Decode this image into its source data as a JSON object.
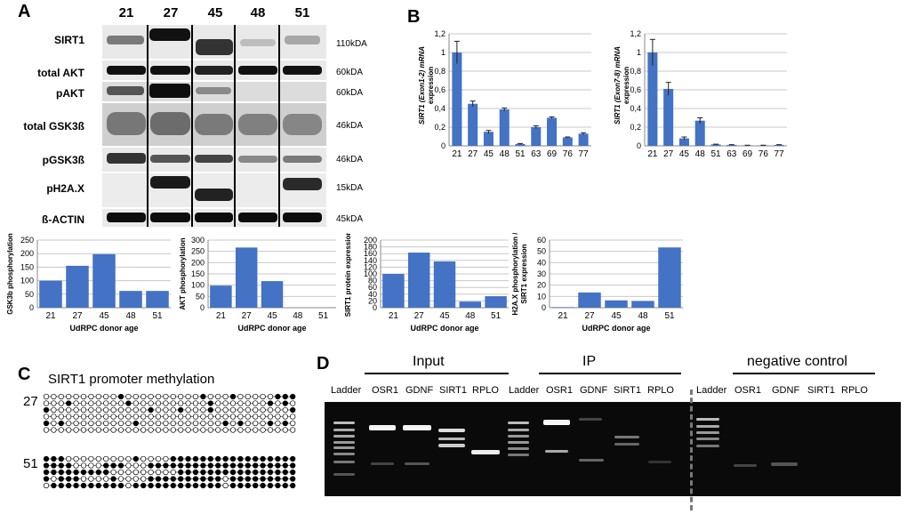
{
  "panel_labels": {
    "a": "A",
    "b": "B",
    "c": "C",
    "d": "D"
  },
  "western": {
    "lanes": [
      "21",
      "27",
      "45",
      "48",
      "51"
    ],
    "proteins": [
      {
        "name": "SIRT1",
        "kda": "110kDA"
      },
      {
        "name": "total AKT",
        "kda": "60kDA"
      },
      {
        "name": "pAKT",
        "kda": "60kDA"
      },
      {
        "name": "total GSK3ß",
        "kda": "46kDA"
      },
      {
        "name": "pGSK3ß",
        "kda": "46kDA"
      },
      {
        "name": "pH2A.X",
        "kda": "15kDA"
      },
      {
        "name": "ß-ACTIN",
        "kda": "45kDA"
      }
    ]
  },
  "chart_data": [
    {
      "type": "bar",
      "ylabel": "SIRT1 (Exon1-2) mRNA expression",
      "categories": [
        "21",
        "27",
        "45",
        "48",
        "51",
        "63",
        "69",
        "76",
        "77"
      ],
      "values": [
        1.0,
        0.45,
        0.15,
        0.39,
        0.02,
        0.2,
        0.3,
        0.09,
        0.13
      ],
      "errors": [
        0.12,
        0.03,
        0.015,
        0.015,
        0.005,
        0.015,
        0.01,
        0.005,
        0.01
      ],
      "ylim": [
        0,
        1.2
      ],
      "yticks": [
        "0",
        "0,2",
        "0,4",
        "0,6",
        "0,8",
        "1",
        "1,2"
      ],
      "ytick_values": [
        0,
        0.2,
        0.4,
        0.6,
        0.8,
        1,
        1.2
      ],
      "xlabel": ""
    },
    {
      "type": "bar",
      "ylabel": "SIRT1 (Exon7-8) mRNA expression",
      "categories": [
        "21",
        "27",
        "45",
        "48",
        "51",
        "63",
        "69",
        "76",
        "77"
      ],
      "values": [
        1.0,
        0.61,
        0.08,
        0.27,
        0.015,
        0.01,
        0.005,
        0.005,
        0.01
      ],
      "errors": [
        0.14,
        0.07,
        0.015,
        0.03,
        0.003,
        0.003,
        0.002,
        0.002,
        0.003
      ],
      "ylim": [
        0,
        1.2
      ],
      "yticks": [
        "0",
        "0,2",
        "0,4",
        "0,6",
        "0,8",
        "1",
        "1,2"
      ],
      "ytick_values": [
        0,
        0.2,
        0.4,
        0.6,
        0.8,
        1,
        1.2
      ],
      "xlabel": ""
    },
    {
      "type": "bar",
      "ylabel": "GSK3b phosphorylation",
      "categories": [
        "21",
        "27",
        "45",
        "48",
        "51"
      ],
      "values": [
        100,
        155,
        198,
        62,
        62
      ],
      "ylim": [
        0,
        250
      ],
      "yticks": [
        "0",
        "50",
        "100",
        "150",
        "200",
        "250"
      ],
      "ytick_values": [
        0,
        50,
        100,
        150,
        200,
        250
      ],
      "xlabel": "UdRPC donor age"
    },
    {
      "type": "bar",
      "ylabel": "AKT phosphorylation",
      "categories": [
        "21",
        "27",
        "45",
        "48",
        "51"
      ],
      "values": [
        98,
        267,
        118,
        0,
        0
      ],
      "ylim": [
        0,
        300
      ],
      "yticks": [
        "0",
        "50",
        "100",
        "150",
        "200",
        "250",
        "300"
      ],
      "ytick_values": [
        0,
        50,
        100,
        150,
        200,
        250,
        300
      ],
      "xlabel": "UdRPC donor age"
    },
    {
      "type": "bar",
      "ylabel": "SIRT1 protein expression",
      "categories": [
        "21",
        "27",
        "45",
        "48",
        "51"
      ],
      "values": [
        100,
        163,
        137,
        18,
        34
      ],
      "ylim": [
        0,
        200
      ],
      "yticks": [
        "0",
        "20",
        "40",
        "60",
        "80",
        "100",
        "120",
        "140",
        "160",
        "180",
        "200"
      ],
      "ytick_values": [
        0,
        20,
        40,
        60,
        80,
        100,
        120,
        140,
        160,
        180,
        200
      ],
      "xlabel": "UdRPC donor age"
    },
    {
      "type": "bar",
      "ylabel": "H2A.X phosphorylation / SIRT1 expression",
      "categories": [
        "21",
        "27",
        "45",
        "48",
        "51"
      ],
      "values": [
        0.5,
        13.5,
        6.5,
        6,
        53.5
      ],
      "ylim": [
        0,
        60
      ],
      "yticks": [
        "0",
        "10",
        "20",
        "30",
        "40",
        "50",
        "60"
      ],
      "ytick_values": [
        0,
        10,
        20,
        30,
        40,
        50,
        60
      ],
      "xlabel": "UdRPC donor age"
    }
  ],
  "methylation": {
    "title": "SIRT1 promoter methylation",
    "group_labels": [
      "27",
      "51"
    ],
    "groups": [
      [
        "0000000000100000000001000100000111",
        "0001000000010000000000100000001010",
        "1000000000000010001000100000000001",
        "0000000000000000000000000000000000",
        "1010000000001000000000001010001010",
        "0000000000000000000000000000000000"
      ],
      [
        "1110000000001000011111111111111111",
        "1111000011100011111111111111111111",
        "1111111110000000001111111111111111",
        "1011100001000011111111110111111111",
        "0111111111101111111111110111111111",
        "1111111111111111111011111111111111"
      ]
    ]
  },
  "gel": {
    "input_label": "Input",
    "ip_label": "IP",
    "neg_label": "negative control",
    "lane_labels": [
      "Ladder",
      "OSR1",
      "GDNF",
      "SIRT1",
      "RPLO",
      "Ladder",
      "OSR1",
      "GDNF",
      "SIRT1",
      "RPLO",
      "Ladder",
      "OSR1",
      "GDNF",
      "SIRT1",
      "RPLO"
    ]
  }
}
